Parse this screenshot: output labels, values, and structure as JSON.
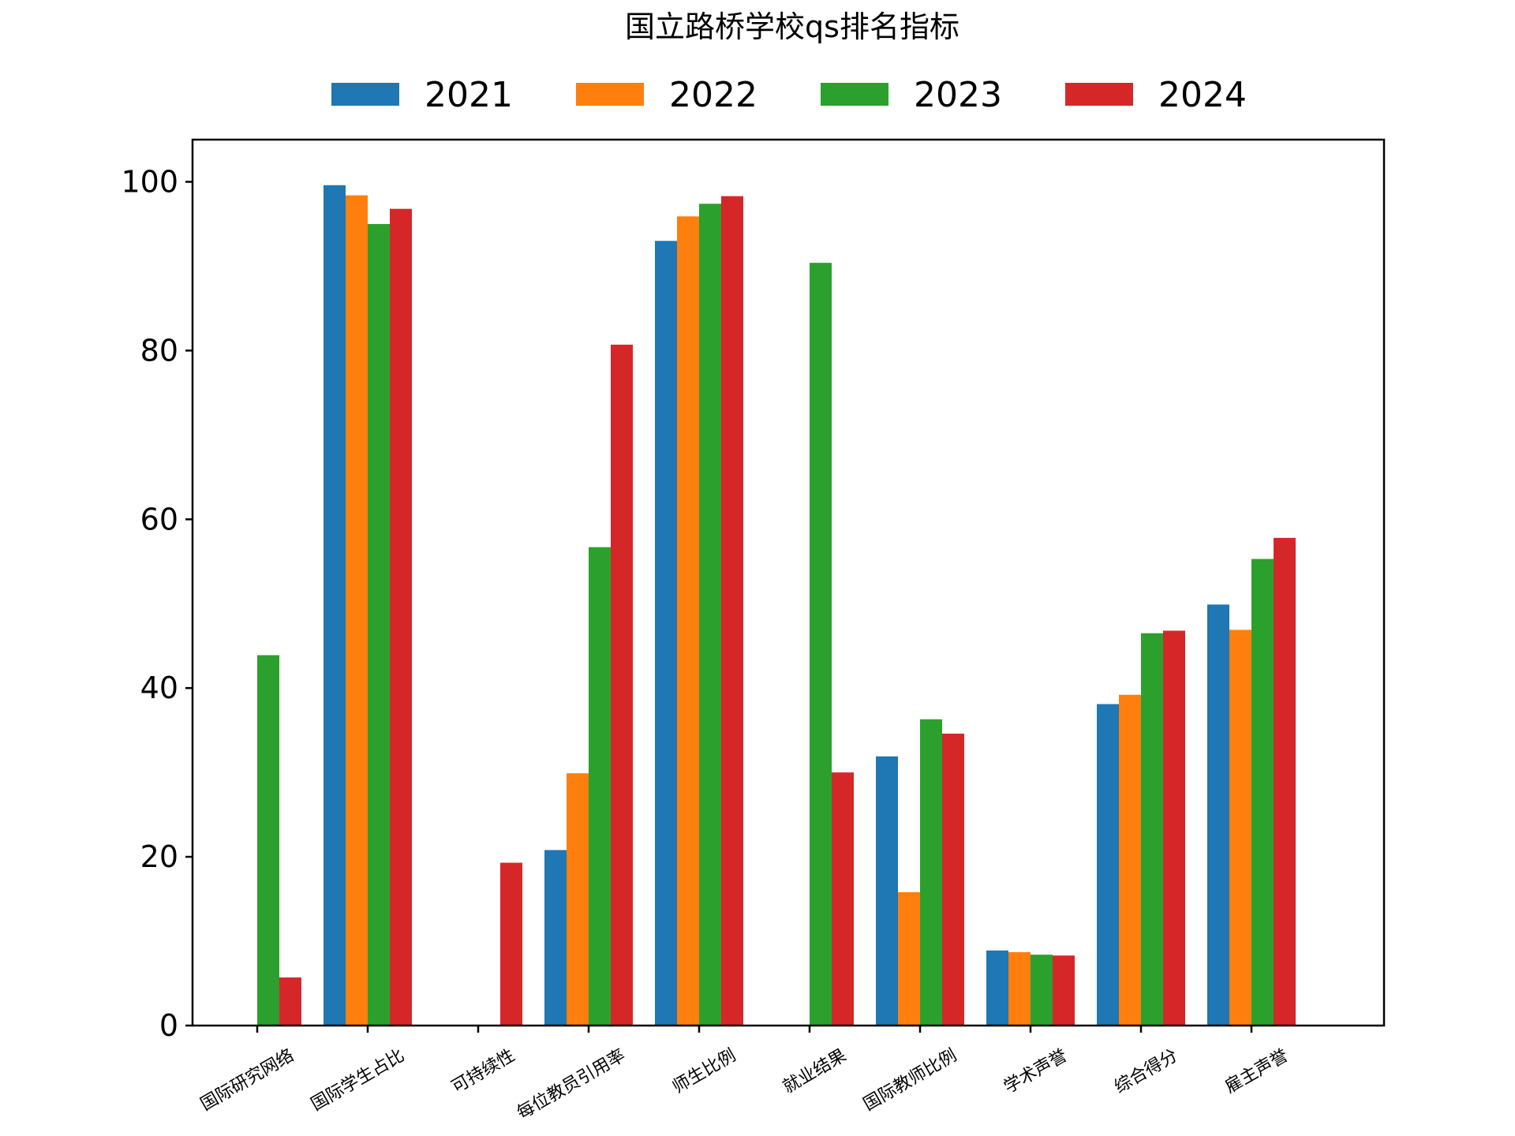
{
  "chart_data": {
    "type": "bar",
    "title": "国立路桥学校qs排名指标",
    "xlabel": "",
    "ylabel": "",
    "ylim": [
      0,
      105
    ],
    "yticks": [
      "0",
      "20",
      "40",
      "60",
      "80",
      "100"
    ],
    "grid": false,
    "legend_position": "top",
    "categories": [
      "国际研究网络",
      "国际学生占比",
      "可持续性",
      "每位教员引用率",
      "师生比例",
      "就业结果",
      "国际教师比例",
      "学术声誉",
      "综合得分",
      "雇主声誉"
    ],
    "series": [
      {
        "name": "2021",
        "color": "#1f77b4",
        "values": [
          0,
          99.6,
          0,
          20.8,
          93.0,
          0,
          31.9,
          8.9,
          38.1,
          49.9
        ]
      },
      {
        "name": "2022",
        "color": "#ff7f0e",
        "values": [
          0,
          98.4,
          0,
          29.9,
          95.9,
          0,
          15.8,
          8.7,
          39.2,
          46.9
        ]
      },
      {
        "name": "2023",
        "color": "#2ca02c",
        "values": [
          43.9,
          95.0,
          0,
          56.7,
          97.4,
          90.4,
          36.3,
          8.4,
          46.5,
          55.3
        ]
      },
      {
        "name": "2024",
        "color": "#d62728",
        "values": [
          5.7,
          96.8,
          19.3,
          80.7,
          98.3,
          30.0,
          34.6,
          8.3,
          46.8,
          57.8
        ]
      }
    ]
  }
}
